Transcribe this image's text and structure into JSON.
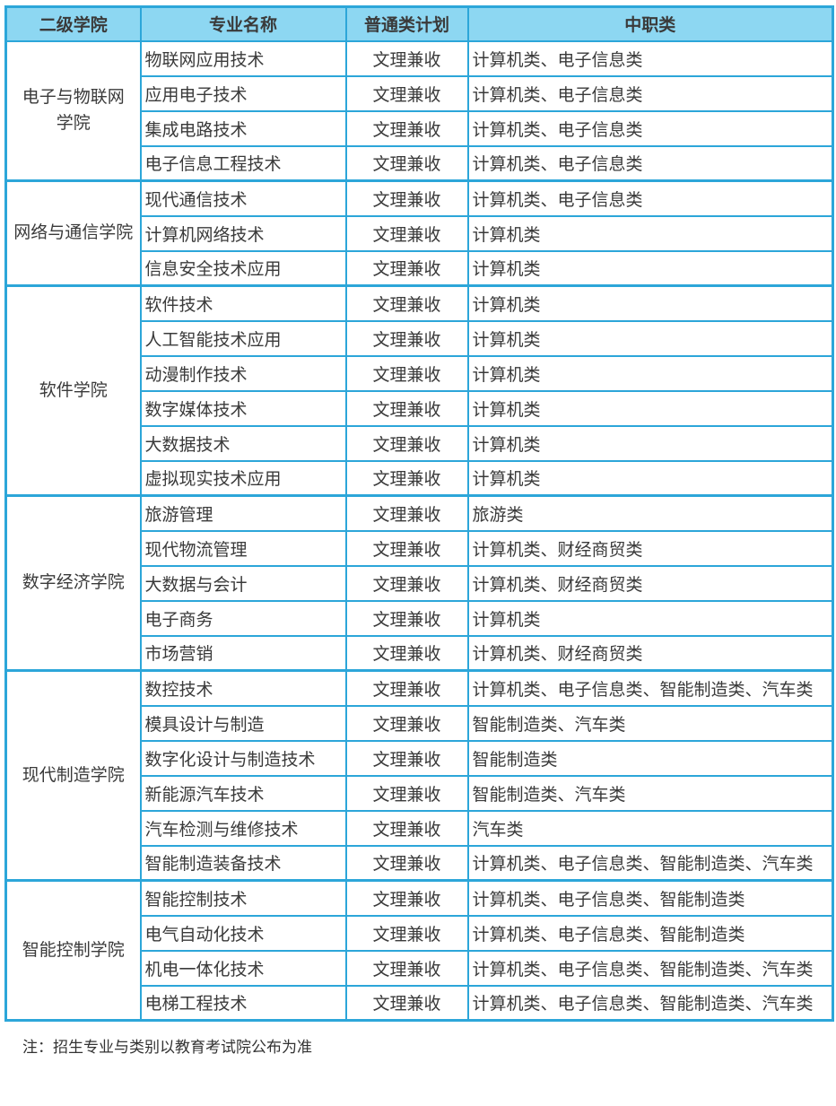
{
  "colors": {
    "border": "#2ca6d9",
    "header_bg": "#8dd7f2",
    "row_bg": "#ffffff",
    "row_alt_bg": "#d4effb",
    "text": "#3a3a3a"
  },
  "table": {
    "headers": [
      "二级学院",
      "专业名称",
      "普通类计划",
      "中职类"
    ],
    "groups": [
      {
        "college": "电子与物联网\n学院",
        "majors": [
          {
            "name": "物联网应用技术",
            "plan": "文理兼收",
            "vocational": "计算机类、电子信息类"
          },
          {
            "name": "应用电子技术",
            "plan": "文理兼收",
            "vocational": "计算机类、电子信息类"
          },
          {
            "name": "集成电路技术",
            "plan": "文理兼收",
            "vocational": "计算机类、电子信息类"
          },
          {
            "name": "电子信息工程技术",
            "plan": "文理兼收",
            "vocational": "计算机类、电子信息类"
          }
        ]
      },
      {
        "college": "网络与通信学院",
        "majors": [
          {
            "name": "现代通信技术",
            "plan": "文理兼收",
            "vocational": "计算机类、电子信息类"
          },
          {
            "name": "计算机网络技术",
            "plan": "文理兼收",
            "vocational": "计算机类"
          },
          {
            "name": "信息安全技术应用",
            "plan": "文理兼收",
            "vocational": "计算机类"
          }
        ]
      },
      {
        "college": "软件学院",
        "majors": [
          {
            "name": "软件技术",
            "plan": "文理兼收",
            "vocational": "计算机类"
          },
          {
            "name": "人工智能技术应用",
            "plan": "文理兼收",
            "vocational": "计算机类"
          },
          {
            "name": "动漫制作技术",
            "plan": "文理兼收",
            "vocational": "计算机类"
          },
          {
            "name": "数字媒体技术",
            "plan": "文理兼收",
            "vocational": "计算机类"
          },
          {
            "name": "大数据技术",
            "plan": "文理兼收",
            "vocational": "计算机类"
          },
          {
            "name": "虚拟现实技术应用",
            "plan": "文理兼收",
            "vocational": "计算机类"
          }
        ]
      },
      {
        "college": "数字经济学院",
        "majors": [
          {
            "name": "旅游管理",
            "plan": "文理兼收",
            "vocational": "旅游类"
          },
          {
            "name": "现代物流管理",
            "plan": "文理兼收",
            "vocational": "计算机类、财经商贸类"
          },
          {
            "name": "大数据与会计",
            "plan": "文理兼收",
            "vocational": "计算机类、财经商贸类"
          },
          {
            "name": "电子商务",
            "plan": "文理兼收",
            "vocational": "计算机类"
          },
          {
            "name": "市场营销",
            "plan": "文理兼收",
            "vocational": "计算机类、财经商贸类"
          }
        ]
      },
      {
        "college": "现代制造学院",
        "majors": [
          {
            "name": "数控技术",
            "plan": "文理兼收",
            "vocational": "计算机类、电子信息类、智能制造类、汽车类"
          },
          {
            "name": "模具设计与制造",
            "plan": "文理兼收",
            "vocational": "智能制造类、汽车类"
          },
          {
            "name": "数字化设计与制造技术",
            "plan": "文理兼收",
            "vocational": "智能制造类"
          },
          {
            "name": "新能源汽车技术",
            "plan": "文理兼收",
            "vocational": "智能制造类、汽车类"
          },
          {
            "name": "汽车检测与维修技术",
            "plan": "文理兼收",
            "vocational": "汽车类"
          },
          {
            "name": "智能制造装备技术",
            "plan": "文理兼收",
            "vocational": "计算机类、电子信息类、智能制造类、汽车类"
          }
        ]
      },
      {
        "college": "智能控制学院",
        "majors": [
          {
            "name": "智能控制技术",
            "plan": "文理兼收",
            "vocational": "计算机类、电子信息类、智能制造类"
          },
          {
            "name": "电气自动化技术",
            "plan": "文理兼收",
            "vocational": "计算机类、电子信息类、智能制造类"
          },
          {
            "name": "机电一体化技术",
            "plan": "文理兼收",
            "vocational": "计算机类、电子信息类、智能制造类、汽车类"
          },
          {
            "name": "电梯工程技术",
            "plan": "文理兼收",
            "vocational": "计算机类、电子信息类、智能制造类、汽车类"
          }
        ]
      }
    ]
  },
  "note": "注：招生专业与类别以教育考试院公布为准"
}
